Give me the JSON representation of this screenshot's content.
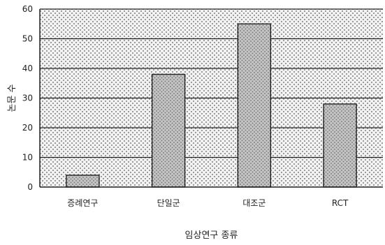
{
  "chart_data": {
    "type": "bar",
    "title": "",
    "xlabel": "임상연구 종류",
    "ylabel": "논문 수",
    "categories": [
      "증례연구",
      "단일군",
      "대조군",
      "RCT"
    ],
    "values": [
      4,
      38,
      55,
      28
    ],
    "ylim": [
      0,
      60
    ],
    "yticks": [
      0,
      10,
      20,
      30,
      40,
      50,
      60
    ],
    "grid": true,
    "legend": "none",
    "colors": {
      "plot_pattern_dot": "#9a9a9a",
      "plot_background": "#f2f2f2",
      "bar_fill": "#c4c4c4",
      "bar_dot": "#6f6f6f",
      "bar_stroke": "#222222",
      "grid_line": "#222222",
      "axis_line": "#222222",
      "text": "#222222"
    }
  }
}
